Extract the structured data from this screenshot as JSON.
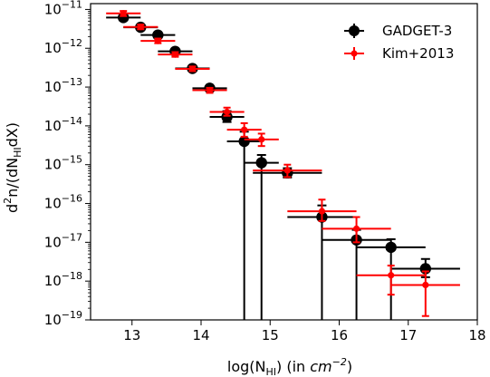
{
  "chart_data": {
    "type": "scatter",
    "xlabel": "log(N",
    "xlabel_sub": "HI",
    "xlabel_tail": ") (in ",
    "xlabel_unit": "cm",
    "xlabel_unit_sup": "−2",
    "xlabel_close": ")",
    "ylabel": "d",
    "ylabel_sup": "2",
    "ylabel_mid": "n/(dN",
    "ylabel_sub": "HI",
    "ylabel_tail": "dX)",
    "xlim": [
      12.4,
      18.0
    ],
    "ylim_log10": [
      -19,
      -10.85
    ],
    "y_scale": "log",
    "x_ticks": [
      {
        "value": 13,
        "label": "13"
      },
      {
        "value": 14,
        "label": "14"
      },
      {
        "value": 15,
        "label": "15"
      },
      {
        "value": 16,
        "label": "16"
      },
      {
        "value": 17,
        "label": "17"
      },
      {
        "value": 18,
        "label": "18"
      }
    ],
    "y_ticks": [
      {
        "exp": -11,
        "base": "10",
        "sup": "−11"
      },
      {
        "exp": -12,
        "base": "10",
        "sup": "−12"
      },
      {
        "exp": -13,
        "base": "10",
        "sup": "−13"
      },
      {
        "exp": -14,
        "base": "10",
        "sup": "−14"
      },
      {
        "exp": -15,
        "base": "10",
        "sup": "−15"
      },
      {
        "exp": -16,
        "base": "10",
        "sup": "−16"
      },
      {
        "exp": -17,
        "base": "10",
        "sup": "−17"
      },
      {
        "exp": -18,
        "base": "10",
        "sup": "−18"
      },
      {
        "exp": -19,
        "base": "10",
        "sup": "−19"
      }
    ],
    "legend": {
      "placement": "top-right"
    },
    "series": [
      {
        "name": "GADGET-3",
        "color": "#000000",
        "marker": "circle-large",
        "points": [
          {
            "x": 12.875,
            "xerr": 0.25,
            "log_y": -11.21,
            "log_lo": -11.28,
            "log_hi": -11.15
          },
          {
            "x": 13.125,
            "xerr": 0.25,
            "log_y": -11.46,
            "log_lo": -11.52,
            "log_hi": -11.4
          },
          {
            "x": 13.375,
            "xerr": 0.25,
            "log_y": -11.66,
            "log_lo": -11.72,
            "log_hi": -11.6
          },
          {
            "x": 13.625,
            "xerr": 0.25,
            "log_y": -12.08,
            "log_lo": -12.14,
            "log_hi": -12.02
          },
          {
            "x": 13.875,
            "xerr": 0.25,
            "log_y": -12.52,
            "log_lo": -12.58,
            "log_hi": -12.46
          },
          {
            "x": 14.125,
            "xerr": 0.25,
            "log_y": -13.03,
            "log_lo": -13.09,
            "log_hi": -12.97
          },
          {
            "x": 14.375,
            "xerr": 0.25,
            "log_y": -13.77,
            "log_lo": -13.9,
            "log_hi": -13.62
          },
          {
            "x": 14.625,
            "xerr": 0.25,
            "log_y": -14.4,
            "log_lo": -19.0,
            "log_hi": -14.15
          },
          {
            "x": 14.875,
            "xerr": 0.25,
            "log_y": -14.95,
            "log_lo": -19.0,
            "log_hi": -14.75
          },
          {
            "x": 15.25,
            "xerr": 0.5,
            "log_y": -15.21,
            "log_lo": -15.33,
            "log_hi": -15.09
          },
          {
            "x": 15.75,
            "xerr": 0.5,
            "log_y": -16.35,
            "log_lo": -19.0,
            "log_hi": -16.05
          },
          {
            "x": 16.25,
            "xerr": 0.5,
            "log_y": -16.94,
            "log_lo": -19.0,
            "log_hi": -16.68
          },
          {
            "x": 16.75,
            "xerr": 0.5,
            "log_y": -17.13,
            "log_lo": -19.0,
            "log_hi": -16.92
          },
          {
            "x": 17.25,
            "xerr": 0.5,
            "log_y": -17.68,
            "log_lo": -17.9,
            "log_hi": -17.43
          }
        ]
      },
      {
        "name": "Kim+2013",
        "color": "#ff0000",
        "marker": "circle-small",
        "points": [
          {
            "x": 12.875,
            "xerr": 0.25,
            "log_y": -11.1,
            "log_lo": -11.17,
            "log_hi": -11.04
          },
          {
            "x": 13.125,
            "xerr": 0.25,
            "log_y": -11.45,
            "log_lo": -11.51,
            "log_hi": -11.39
          },
          {
            "x": 13.375,
            "xerr": 0.25,
            "log_y": -11.81,
            "log_lo": -11.87,
            "log_hi": -11.75
          },
          {
            "x": 13.625,
            "xerr": 0.25,
            "log_y": -12.16,
            "log_lo": -12.22,
            "log_hi": -12.1
          },
          {
            "x": 13.875,
            "xerr": 0.25,
            "log_y": -12.53,
            "log_lo": -12.59,
            "log_hi": -12.47
          },
          {
            "x": 14.125,
            "xerr": 0.25,
            "log_y": -13.08,
            "log_lo": -13.15,
            "log_hi": -13.02
          },
          {
            "x": 14.375,
            "xerr": 0.25,
            "log_y": -13.64,
            "log_lo": -13.74,
            "log_hi": -13.53
          },
          {
            "x": 14.625,
            "xerr": 0.25,
            "log_y": -14.1,
            "log_lo": -14.28,
            "log_hi": -13.93
          },
          {
            "x": 14.875,
            "xerr": 0.25,
            "log_y": -14.35,
            "log_lo": -14.52,
            "log_hi": -14.2
          },
          {
            "x": 15.25,
            "xerr": 0.5,
            "log_y": -15.15,
            "log_lo": -15.32,
            "log_hi": -15.0
          },
          {
            "x": 15.75,
            "xerr": 0.5,
            "log_y": -16.2,
            "log_lo": -16.45,
            "log_hi": -15.9
          },
          {
            "x": 16.25,
            "xerr": 0.5,
            "log_y": -16.65,
            "log_lo": -17.0,
            "log_hi": -16.35
          },
          {
            "x": 16.75,
            "xerr": 0.5,
            "log_y": -17.85,
            "log_lo": -18.35,
            "log_hi": -17.6
          },
          {
            "x": 17.25,
            "xerr": 0.5,
            "log_y": -18.1,
            "log_lo": -18.9,
            "log_hi": -17.75
          }
        ]
      }
    ]
  }
}
